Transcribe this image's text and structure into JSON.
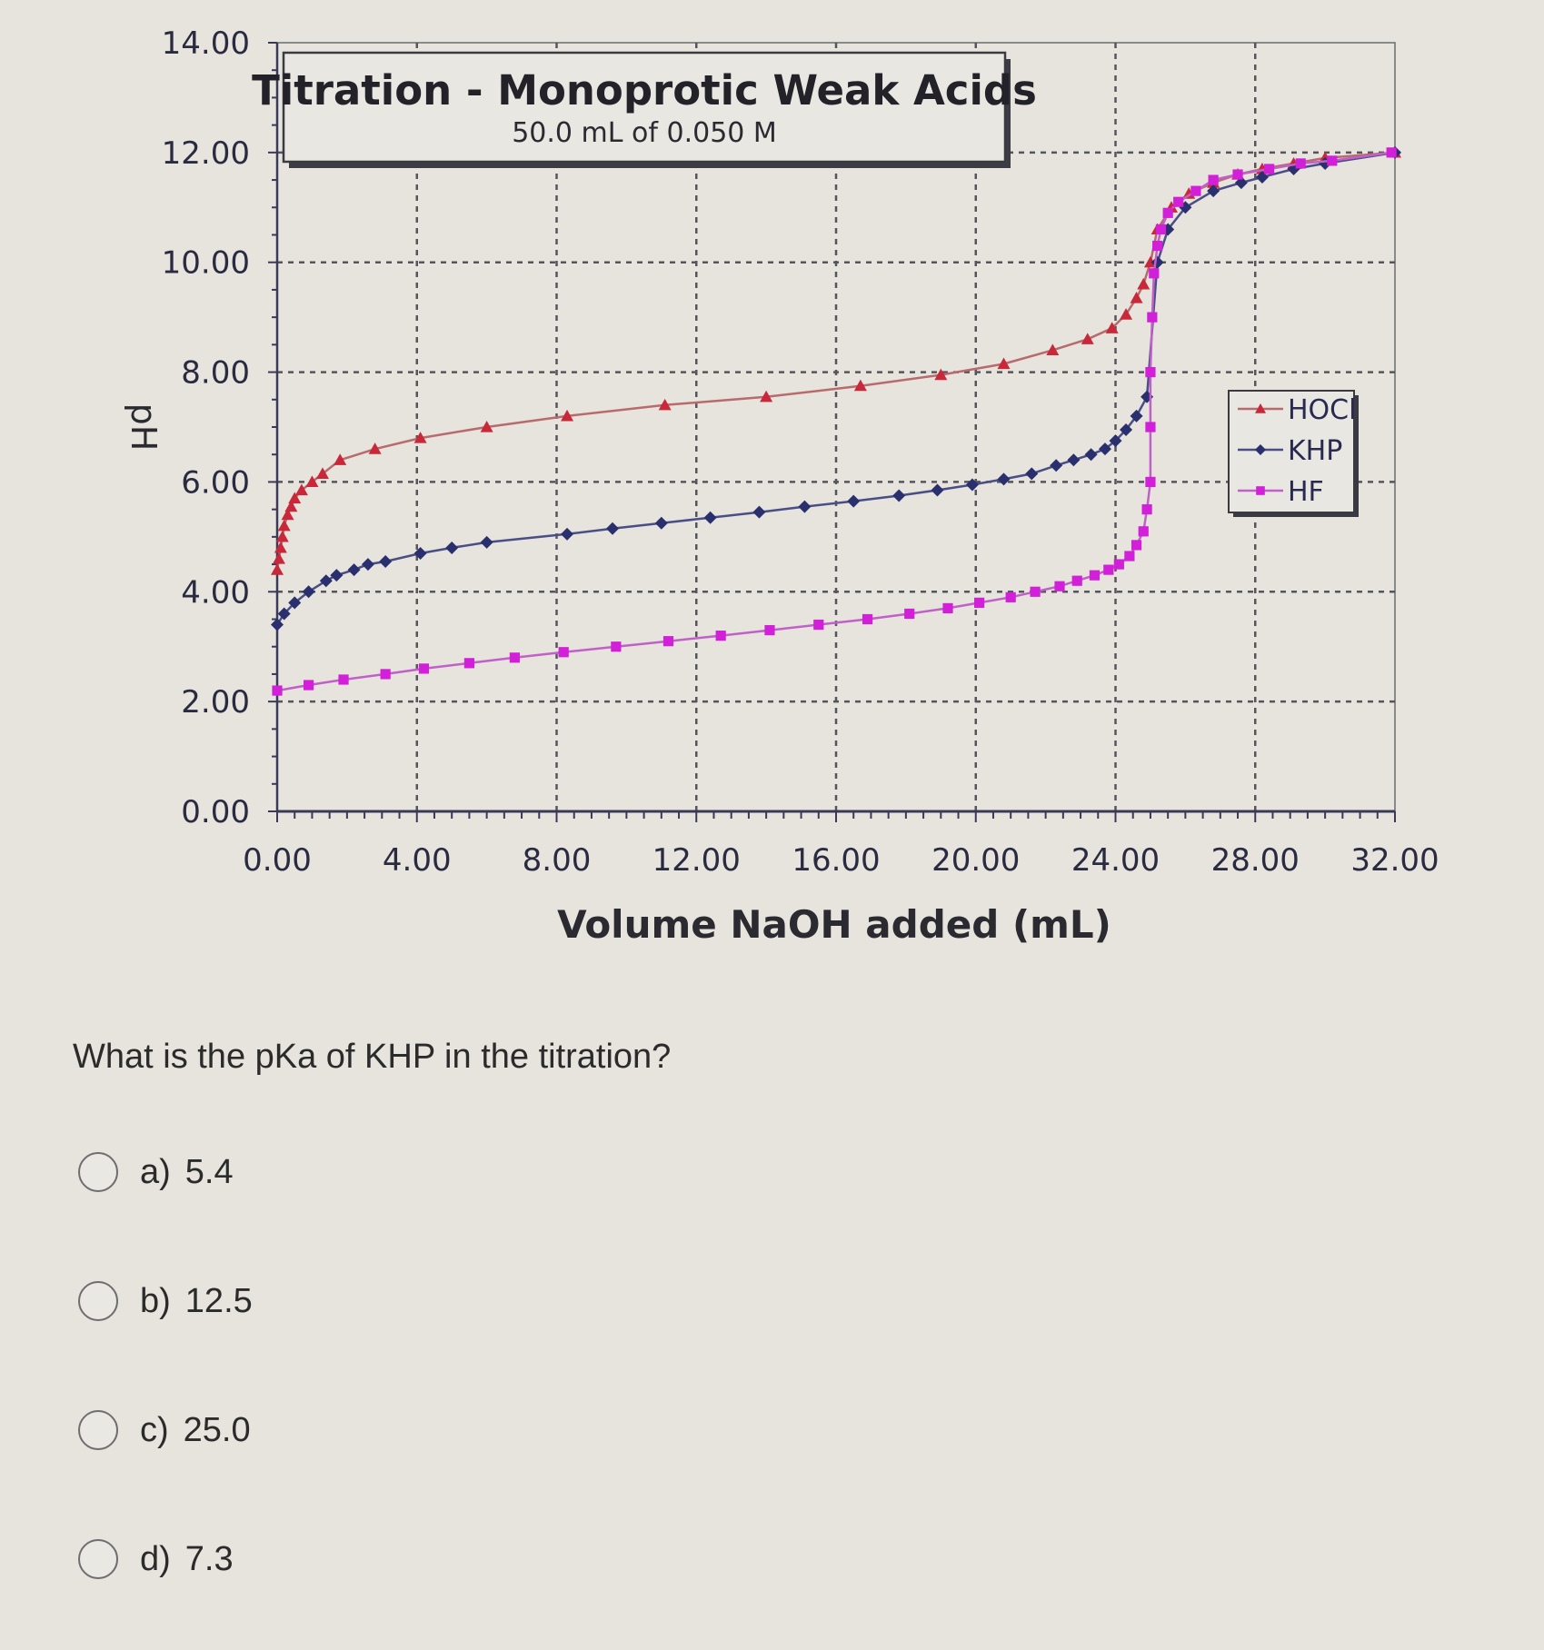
{
  "chart_data": {
    "type": "line",
    "title": "Titration - Monoprotic Weak Acids",
    "subtitle": "50.0 mL of 0.050 M",
    "xlabel": "Volume NaOH added (mL)",
    "ylabel": "pH",
    "xlim": [
      0,
      32
    ],
    "ylim": [
      0,
      14
    ],
    "x_ticks": [
      "0.00",
      "4.00",
      "8.00",
      "12.00",
      "16.00",
      "20.00",
      "24.00",
      "28.00",
      "32.00"
    ],
    "y_ticks": [
      "0.00",
      "2.00",
      "4.00",
      "6.00",
      "8.00",
      "10.00",
      "12.00",
      "14.00"
    ],
    "grid": true,
    "legend_position": "right-middle",
    "series": [
      {
        "name": "HOCl",
        "color": "#c8283a",
        "line_color": "#b86a6e",
        "marker": "triangle",
        "x": [
          0,
          0.05,
          0.1,
          0.15,
          0.2,
          0.3,
          0.4,
          0.5,
          0.7,
          1.0,
          1.3,
          1.8,
          2.8,
          4.1,
          6.0,
          8.3,
          11.1,
          14.0,
          16.7,
          19.0,
          20.8,
          22.2,
          23.2,
          23.9,
          24.3,
          24.6,
          24.8,
          25.0,
          25.2,
          25.6,
          26.1,
          26.8,
          27.5,
          28.2,
          29.1,
          30.0,
          32.0
        ],
        "y": [
          4.4,
          4.6,
          4.8,
          5.0,
          5.2,
          5.4,
          5.55,
          5.7,
          5.85,
          6.0,
          6.15,
          6.4,
          6.6,
          6.8,
          7.0,
          7.2,
          7.4,
          7.55,
          7.75,
          7.95,
          8.15,
          8.4,
          8.6,
          8.8,
          9.05,
          9.35,
          9.6,
          10.0,
          10.6,
          11.0,
          11.25,
          11.45,
          11.6,
          11.7,
          11.8,
          11.9,
          12.0
        ]
      },
      {
        "name": "KHP",
        "color": "#2a2f6e",
        "line_color": "#4a4e86",
        "marker": "diamond",
        "x": [
          0,
          0.2,
          0.5,
          0.9,
          1.4,
          1.7,
          2.2,
          2.6,
          3.1,
          4.1,
          5.0,
          6.0,
          8.3,
          9.6,
          11.0,
          12.4,
          13.8,
          15.1,
          16.5,
          17.8,
          18.9,
          19.9,
          20.8,
          21.6,
          22.3,
          22.8,
          23.3,
          23.7,
          24.0,
          24.3,
          24.6,
          24.9,
          25.2,
          25.5,
          26.0,
          26.8,
          27.6,
          28.2,
          29.1,
          30.0,
          32.0
        ],
        "y": [
          3.4,
          3.6,
          3.8,
          4.0,
          4.2,
          4.3,
          4.4,
          4.5,
          4.55,
          4.7,
          4.8,
          4.9,
          5.05,
          5.15,
          5.25,
          5.35,
          5.45,
          5.55,
          5.65,
          5.75,
          5.85,
          5.95,
          6.05,
          6.15,
          6.3,
          6.4,
          6.5,
          6.6,
          6.75,
          6.95,
          7.2,
          7.55,
          10.0,
          10.6,
          11.0,
          11.3,
          11.45,
          11.55,
          11.7,
          11.8,
          12.0
        ]
      },
      {
        "name": "HF",
        "color": "#d21fd8",
        "line_color": "#c060c8",
        "marker": "square",
        "x": [
          0,
          0.9,
          1.9,
          3.1,
          4.2,
          5.5,
          6.8,
          8.2,
          9.7,
          11.2,
          12.7,
          14.1,
          15.5,
          16.9,
          18.1,
          19.2,
          20.1,
          21.0,
          21.7,
          22.4,
          22.9,
          23.4,
          23.8,
          24.1,
          24.4,
          24.6,
          24.8,
          24.9,
          25.0,
          25.0,
          25.0,
          25.05,
          25.1,
          25.2,
          25.3,
          25.5,
          25.8,
          26.3,
          26.8,
          27.5,
          28.4,
          29.3,
          30.2,
          31.9
        ],
        "y": [
          2.2,
          2.3,
          2.4,
          2.5,
          2.6,
          2.7,
          2.8,
          2.9,
          3.0,
          3.1,
          3.2,
          3.3,
          3.4,
          3.5,
          3.6,
          3.7,
          3.8,
          3.9,
          4.0,
          4.1,
          4.2,
          4.3,
          4.4,
          4.5,
          4.65,
          4.85,
          5.1,
          5.5,
          6.0,
          7.0,
          8.0,
          9.0,
          9.8,
          10.3,
          10.6,
          10.9,
          11.1,
          11.3,
          11.5,
          11.6,
          11.7,
          11.8,
          11.85,
          12.0
        ]
      }
    ]
  },
  "question": {
    "text": "What is the pKa of KHP in the titration?",
    "options": [
      {
        "letter": "a)",
        "value": "5.4"
      },
      {
        "letter": "b)",
        "value": "12.5"
      },
      {
        "letter": "c)",
        "value": "25.0"
      },
      {
        "letter": "d)",
        "value": "7.3"
      }
    ]
  }
}
